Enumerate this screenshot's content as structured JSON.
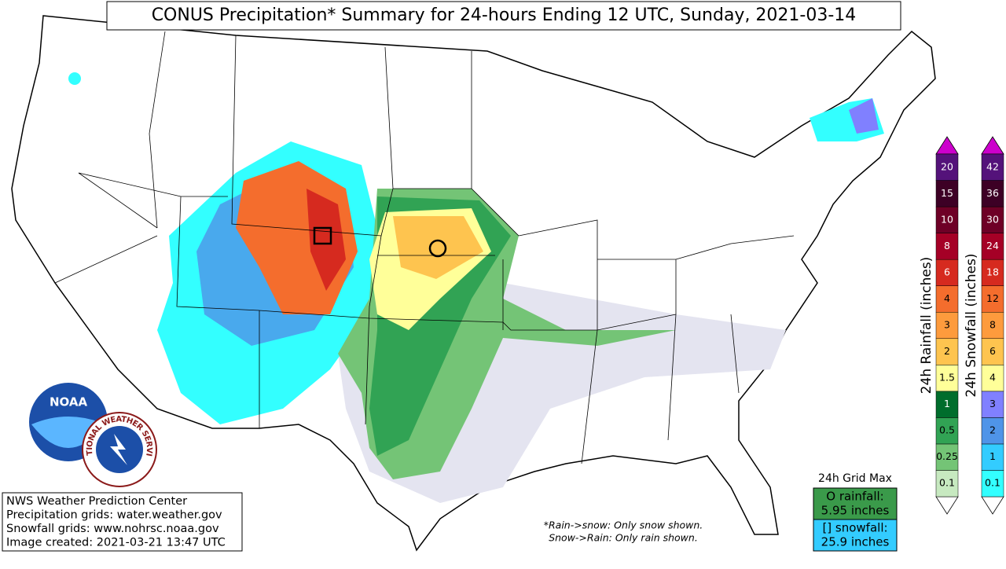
{
  "title": "CONUS Precipitation* Summary for 24-hours Ending 12 UTC, Sunday, 2021-03-14",
  "rain_legend": {
    "label": "24h Rainfall (inches)",
    "ticks": [
      "0.1",
      "0.25",
      "0.5",
      "1",
      "1.5",
      "2",
      "3",
      "4",
      "6",
      "8",
      "10",
      "15",
      "20"
    ],
    "colors": [
      "#c7e9c0",
      "#74c476",
      "#31a354",
      "#006d2c",
      "#ffff99",
      "#fec44f",
      "#fd9b3d",
      "#f46d2d",
      "#d62a1f",
      "#a50026",
      "#6e0026",
      "#3d0025",
      "#54127a"
    ],
    "over_color": "#cc00cc"
  },
  "snow_legend": {
    "label": "24h Snowfall (inches)",
    "ticks": [
      "0.1",
      "1",
      "2",
      "3",
      "4",
      "6",
      "8",
      "12",
      "18",
      "24",
      "30",
      "36",
      "42"
    ],
    "colors": [
      "#33ffff",
      "#33ccff",
      "#4f94e8",
      "#8080ff",
      "#ffff99",
      "#fec44f",
      "#fd9b3d",
      "#f46d2d",
      "#d62a1f",
      "#a50026",
      "#6e0026",
      "#3d0025",
      "#54127a"
    ],
    "over_color": "#cc00cc"
  },
  "grid_max": {
    "title": "24h Grid Max",
    "rain_label": "O rainfall:",
    "rain_value": "5.95 inches",
    "snow_label": "[] snowfall:",
    "snow_value": "25.9 inches"
  },
  "credits": [
    "NWS Weather Prediction Center",
    "Precipitation grids: water.weather.gov",
    "Snowfall grids: www.nohrsc.noaa.gov",
    "Image created: 2021-03-21 13:47 UTC"
  ],
  "footnote": [
    "*Rain->snow: Only snow shown.",
    "Snow->Rain: Only rain shown."
  ],
  "logos": {
    "noaa": "NOAA",
    "nws": "NATIONAL WEATHER SERVICE"
  }
}
